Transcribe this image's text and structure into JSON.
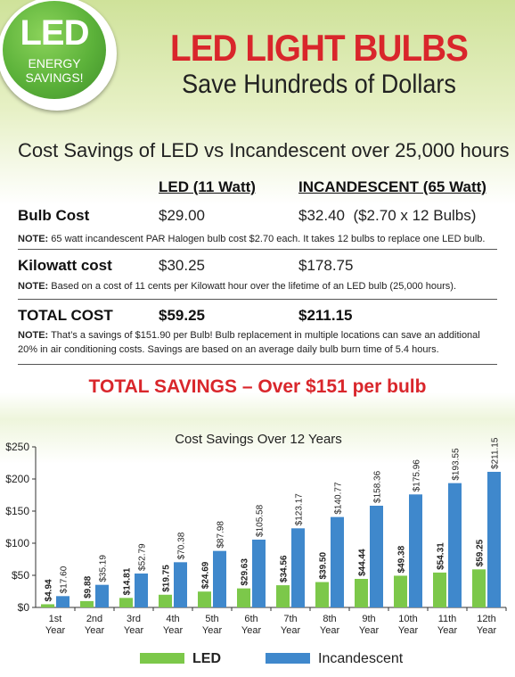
{
  "badge": {
    "big": "LED",
    "line1": "ENERGY",
    "line2": "SAVINGS!"
  },
  "header": {
    "title": "LED LIGHT BULBS",
    "subtitle": "Save Hundreds of Dollars"
  },
  "table": {
    "title": "Cost Savings of LED vs Incandescent over 25,000 hours",
    "col_led": "LED (11 Watt)",
    "col_inc": "INCANDESCENT (65 Watt)",
    "rows": {
      "bulb": {
        "label": "Bulb Cost",
        "led": "$29.00",
        "inc": "$32.40  ($2.70 x 12 Bulbs)",
        "note_label": "NOTE:",
        "note": " 65 watt incandescent PAR Halogen bulb cost $2.70 each. It takes 12 bulbs to replace one LED bulb."
      },
      "kw": {
        "label": "Kilowatt cost",
        "led": "$30.25",
        "inc": "$178.75",
        "note_label": "NOTE:",
        "note": " Based on a cost of 11 cents per Kilowatt hour over the lifetime of an LED bulb (25,000 hours)."
      },
      "total": {
        "label": "TOTAL COST",
        "led": "$59.25",
        "inc": "$211.15",
        "note_label": "NOTE:",
        "note": " That’s a savings of $151.90 per Bulb! Bulb replacement in multiple locations can save an additional 20% in air conditioning costs. Savings are based on an average daily bulb burn time of 5.4 hours."
      }
    }
  },
  "savings_banner": "TOTAL SAVINGS – Over $151 per bulb",
  "chart_data": {
    "type": "bar",
    "title": "Cost Savings Over 12 Years",
    "xlabel": "",
    "ylabel": "",
    "ylim": [
      0,
      250
    ],
    "yticks": [
      "$0",
      "$50",
      "$100",
      "$150",
      "$200",
      "$250"
    ],
    "ytick_values": [
      0,
      50,
      100,
      150,
      200,
      250
    ],
    "categories": [
      [
        "1st",
        "Year"
      ],
      [
        "2nd",
        "Year"
      ],
      [
        "3rd",
        "Year"
      ],
      [
        "4th",
        "Year"
      ],
      [
        "5th",
        "Year"
      ],
      [
        "6th",
        "Year"
      ],
      [
        "7th",
        "Year"
      ],
      [
        "8th",
        "Year"
      ],
      [
        "9th",
        "Year"
      ],
      [
        "10th",
        "Year"
      ],
      [
        "11th",
        "Year"
      ],
      [
        "12th",
        "Year"
      ]
    ],
    "series": [
      {
        "name": "LED",
        "color": "#7cc84a",
        "values": [
          4.94,
          9.88,
          14.81,
          19.75,
          24.69,
          29.63,
          34.56,
          39.5,
          44.44,
          49.38,
          54.31,
          59.25
        ],
        "labels": [
          "$4.94",
          "$9.88",
          "$14.81",
          "$19.75",
          "$24.69",
          "$29.63",
          "$34.56",
          "$39.50",
          "$44.44",
          "$49.38",
          "$54.31",
          "$59.25"
        ]
      },
      {
        "name": "Incandescent",
        "color": "#3f88cc",
        "values": [
          17.6,
          35.19,
          52.79,
          70.38,
          87.98,
          105.58,
          123.17,
          140.77,
          158.36,
          175.96,
          193.55,
          211.15
        ],
        "labels": [
          "$17.60",
          "$35.19",
          "$52.79",
          "$70.38",
          "$87.98",
          "$105.58",
          "$123.17",
          "$140.77",
          "$158.36",
          "$175.96",
          "$193.55",
          "$211.15"
        ]
      }
    ],
    "grid": false,
    "legend": "bottom"
  }
}
